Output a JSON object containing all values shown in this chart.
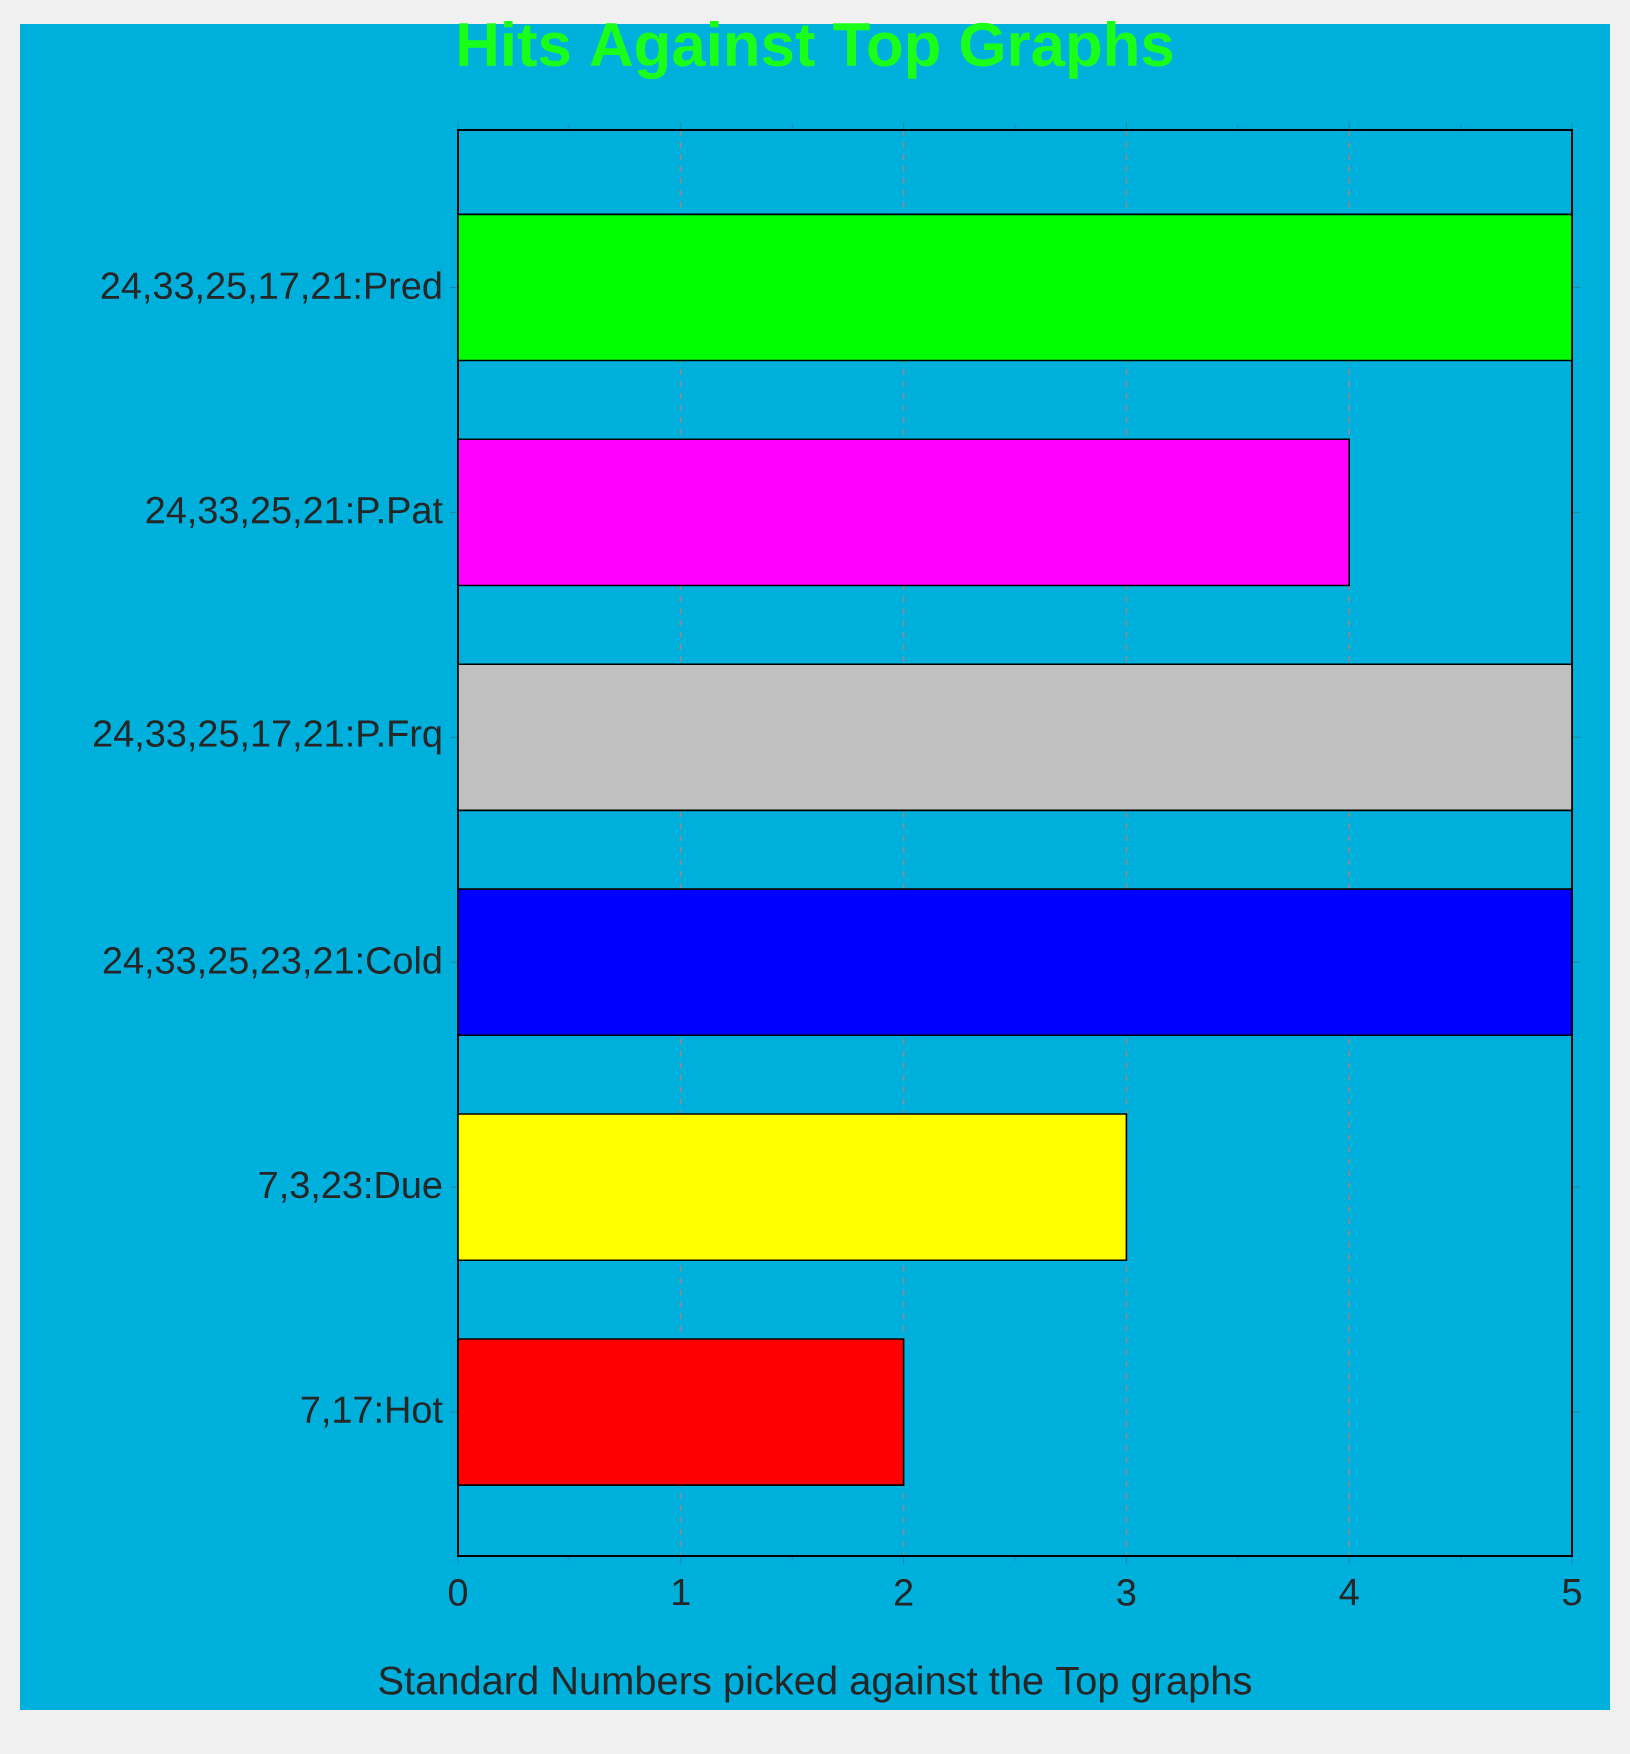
{
  "chart_data": {
    "type": "bar",
    "orientation": "horizontal",
    "title": "Hits Against Top Graphs",
    "xlabel": "Standard Numbers picked against the Top graphs",
    "categories": [
      "24,33,25,17,21:Pred",
      "24,33,25,21:P.Pat",
      "24,33,25,17,21:P.Frq",
      "24,33,25,23,21:Cold",
      "7,3,23:Due",
      "7,17:Hot"
    ],
    "values": [
      5,
      4,
      5,
      5,
      3,
      2
    ],
    "colors": [
      "#00ff00",
      "#ff00ff",
      "#c0c0c0",
      "#0000ff",
      "#ffff00",
      "#ff0000"
    ],
    "xlim": [
      0,
      5
    ],
    "xticks": [
      0,
      1,
      2,
      3,
      4,
      5
    ],
    "grid": "x"
  }
}
